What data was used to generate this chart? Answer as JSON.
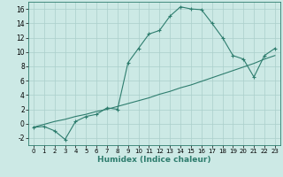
{
  "xlabel": "Humidex (Indice chaleur)",
  "background_color": "#cce9e5",
  "grid_color": "#aacfcb",
  "line_color": "#2e7d6e",
  "xlim": [
    -0.5,
    23.5
  ],
  "ylim": [
    -3,
    17
  ],
  "xticks": [
    0,
    1,
    2,
    3,
    4,
    5,
    6,
    7,
    8,
    9,
    10,
    11,
    12,
    13,
    14,
    15,
    16,
    17,
    18,
    19,
    20,
    21,
    22,
    23
  ],
  "yticks": [
    -2,
    0,
    2,
    4,
    6,
    8,
    10,
    12,
    14,
    16
  ],
  "curve1_x": [
    0,
    1,
    2,
    3,
    4,
    5,
    6,
    7,
    8,
    9,
    10,
    11,
    12,
    13,
    14,
    15,
    16,
    17,
    18,
    19,
    20,
    21,
    22,
    23
  ],
  "curve1_y": [
    -0.5,
    -0.4,
    -1.0,
    -2.2,
    0.3,
    1.0,
    1.3,
    2.2,
    2.0,
    8.5,
    10.5,
    12.5,
    13.0,
    15.0,
    16.3,
    16.0,
    15.9,
    14.0,
    12.0,
    9.5,
    9.0,
    6.5,
    9.5,
    10.5
  ],
  "curve2_x": [
    0,
    1,
    2,
    3,
    4,
    5,
    6,
    7,
    8,
    9,
    10,
    11,
    12,
    13,
    14,
    15,
    16,
    17,
    18,
    19,
    20,
    21,
    22,
    23
  ],
  "curve2_y": [
    -0.5,
    -0.1,
    0.3,
    0.6,
    1.0,
    1.3,
    1.7,
    2.0,
    2.4,
    2.8,
    3.2,
    3.6,
    4.1,
    4.5,
    5.0,
    5.4,
    5.9,
    6.4,
    6.9,
    7.4,
    7.9,
    8.4,
    9.0,
    9.5
  ]
}
